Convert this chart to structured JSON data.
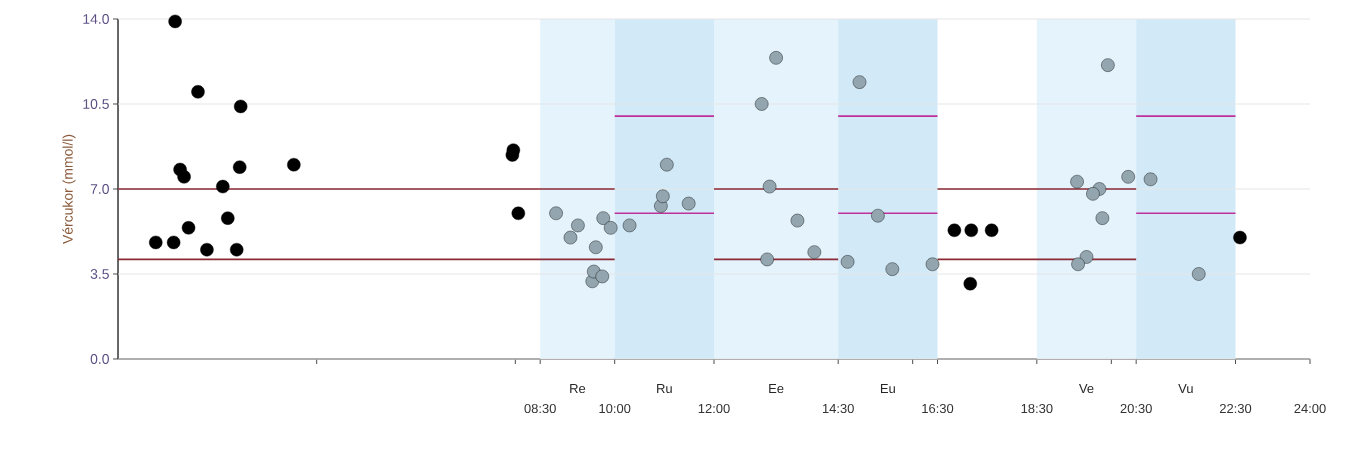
{
  "chart_data": {
    "type": "scatter",
    "ylabel": "Vércukor (mmol/l)",
    "xlim": [
      0,
      24
    ],
    "ylim": [
      0,
      14
    ],
    "xticks": [
      {
        "value": 4,
        "label": null
      },
      {
        "value": 8,
        "label": null
      },
      {
        "value": 8.5,
        "label": "08:30"
      },
      {
        "value": 10,
        "label": "10:00"
      },
      {
        "value": 12,
        "label": "12:00"
      },
      {
        "value": 14.5,
        "label": "14:30"
      },
      {
        "value": 16,
        "label": null
      },
      {
        "value": 16.5,
        "label": "16:30"
      },
      {
        "value": 18.5,
        "label": "18:30"
      },
      {
        "value": 20,
        "label": null
      },
      {
        "value": 20.5,
        "label": "20:30"
      },
      {
        "value": 22.5,
        "label": "22:30"
      },
      {
        "value": 24,
        "label": "24:00"
      }
    ],
    "yticks": [
      {
        "value": 0,
        "label": "0.0"
      },
      {
        "value": 3.5,
        "label": "3.5"
      },
      {
        "value": 7,
        "label": "7.0"
      },
      {
        "value": 10.5,
        "label": "10.5"
      },
      {
        "value": 14,
        "label": "14.0"
      }
    ],
    "grid": "y",
    "marker": "circle",
    "bands": [
      {
        "axis": "x",
        "from": 8.5,
        "to": 10,
        "label": "Re",
        "color": "#e4f3fc"
      },
      {
        "axis": "x",
        "from": 10,
        "to": 12,
        "label": "Ru",
        "color": "#d2eaf8"
      },
      {
        "axis": "x",
        "from": 12,
        "to": 14.5,
        "label": "Ee",
        "color": "#e4f3fc"
      },
      {
        "axis": "x",
        "from": 14.5,
        "to": 16.5,
        "label": "Eu",
        "color": "#d2eaf8"
      },
      {
        "axis": "x",
        "from": 18.5,
        "to": 20.5,
        "label": "Ve",
        "color": "#e4f3fc"
      },
      {
        "axis": "x",
        "from": 20.5,
        "to": 22.5,
        "label": "Vu",
        "color": "#d2eaf8"
      }
    ],
    "series": [
      {
        "type": "line",
        "color": "#8b2a35",
        "marker": "none",
        "x": [
          0,
          10,
          11,
          12,
          14.5,
          15.5,
          16.5,
          20.5
        ],
        "values": [
          7.0,
          7.0,
          null,
          7.0,
          7.0,
          null,
          7.0,
          7.0
        ]
      },
      {
        "type": "line",
        "color": "#8b2a35",
        "marker": "none",
        "x": [
          0,
          10,
          11,
          12,
          14.5,
          15.5,
          16.5,
          20.5
        ],
        "values": [
          4.1,
          4.1,
          null,
          4.1,
          4.1,
          null,
          4.1,
          4.1
        ]
      },
      {
        "type": "line",
        "color": "#c0309a",
        "marker": "none",
        "x": [
          10,
          12,
          13,
          14.5,
          16.5,
          18.5,
          20.5,
          22.5
        ],
        "values": [
          10.0,
          10.0,
          null,
          10.0,
          10.0,
          null,
          10.0,
          10.0
        ]
      },
      {
        "type": "line",
        "color": "#c0309a",
        "marker": "none",
        "x": [
          10,
          12,
          13,
          14.5,
          16.5,
          18.5,
          20.5,
          22.5
        ],
        "values": [
          6.0,
          6.0,
          null,
          6.0,
          6.0,
          null,
          6.0,
          6.0
        ]
      },
      {
        "color": "#000000",
        "x": [
          0.76,
          1.12,
          1.15,
          1.25,
          1.33,
          1.42,
          1.61,
          1.79,
          2.11,
          2.21,
          2.39,
          2.45,
          2.47,
          3.54,
          7.94,
          7.96,
          8.06,
          16.84,
          17.18,
          17.59,
          17.16,
          22.59
        ],
        "values": [
          4.8,
          4.8,
          13.9,
          7.8,
          7.5,
          5.4,
          11.0,
          4.5,
          7.1,
          5.8,
          4.5,
          7.9,
          10.4,
          8.0,
          8.4,
          8.6,
          6.0,
          5.3,
          5.3,
          5.3,
          3.1,
          5.0
        ]
      },
      {
        "color": "#93a5ae",
        "x": [
          8.82,
          9.26,
          9.11,
          9.62,
          9.77,
          9.92,
          9.55,
          9.58,
          9.75,
          10.3,
          10.93,
          10.97,
          11.05,
          11.49,
          12.96,
          13.25,
          13.12,
          13.07,
          13.68,
          14.02,
          14.93,
          15.3,
          14.69,
          15.59,
          16.4,
          19.93,
          19.31,
          19.76,
          19.63,
          19.82,
          20.34,
          20.79,
          19.5,
          19.33,
          21.76
        ],
        "values": [
          6.0,
          5.5,
          5.0,
          4.6,
          5.8,
          5.4,
          3.2,
          3.6,
          3.4,
          5.5,
          6.3,
          6.7,
          8.0,
          6.4,
          10.5,
          12.4,
          7.1,
          4.1,
          5.7,
          4.4,
          11.4,
          5.9,
          4.0,
          3.7,
          3.9,
          12.1,
          7.3,
          7.0,
          6.8,
          5.8,
          7.5,
          7.4,
          4.2,
          3.9,
          3.5
        ]
      }
    ]
  }
}
